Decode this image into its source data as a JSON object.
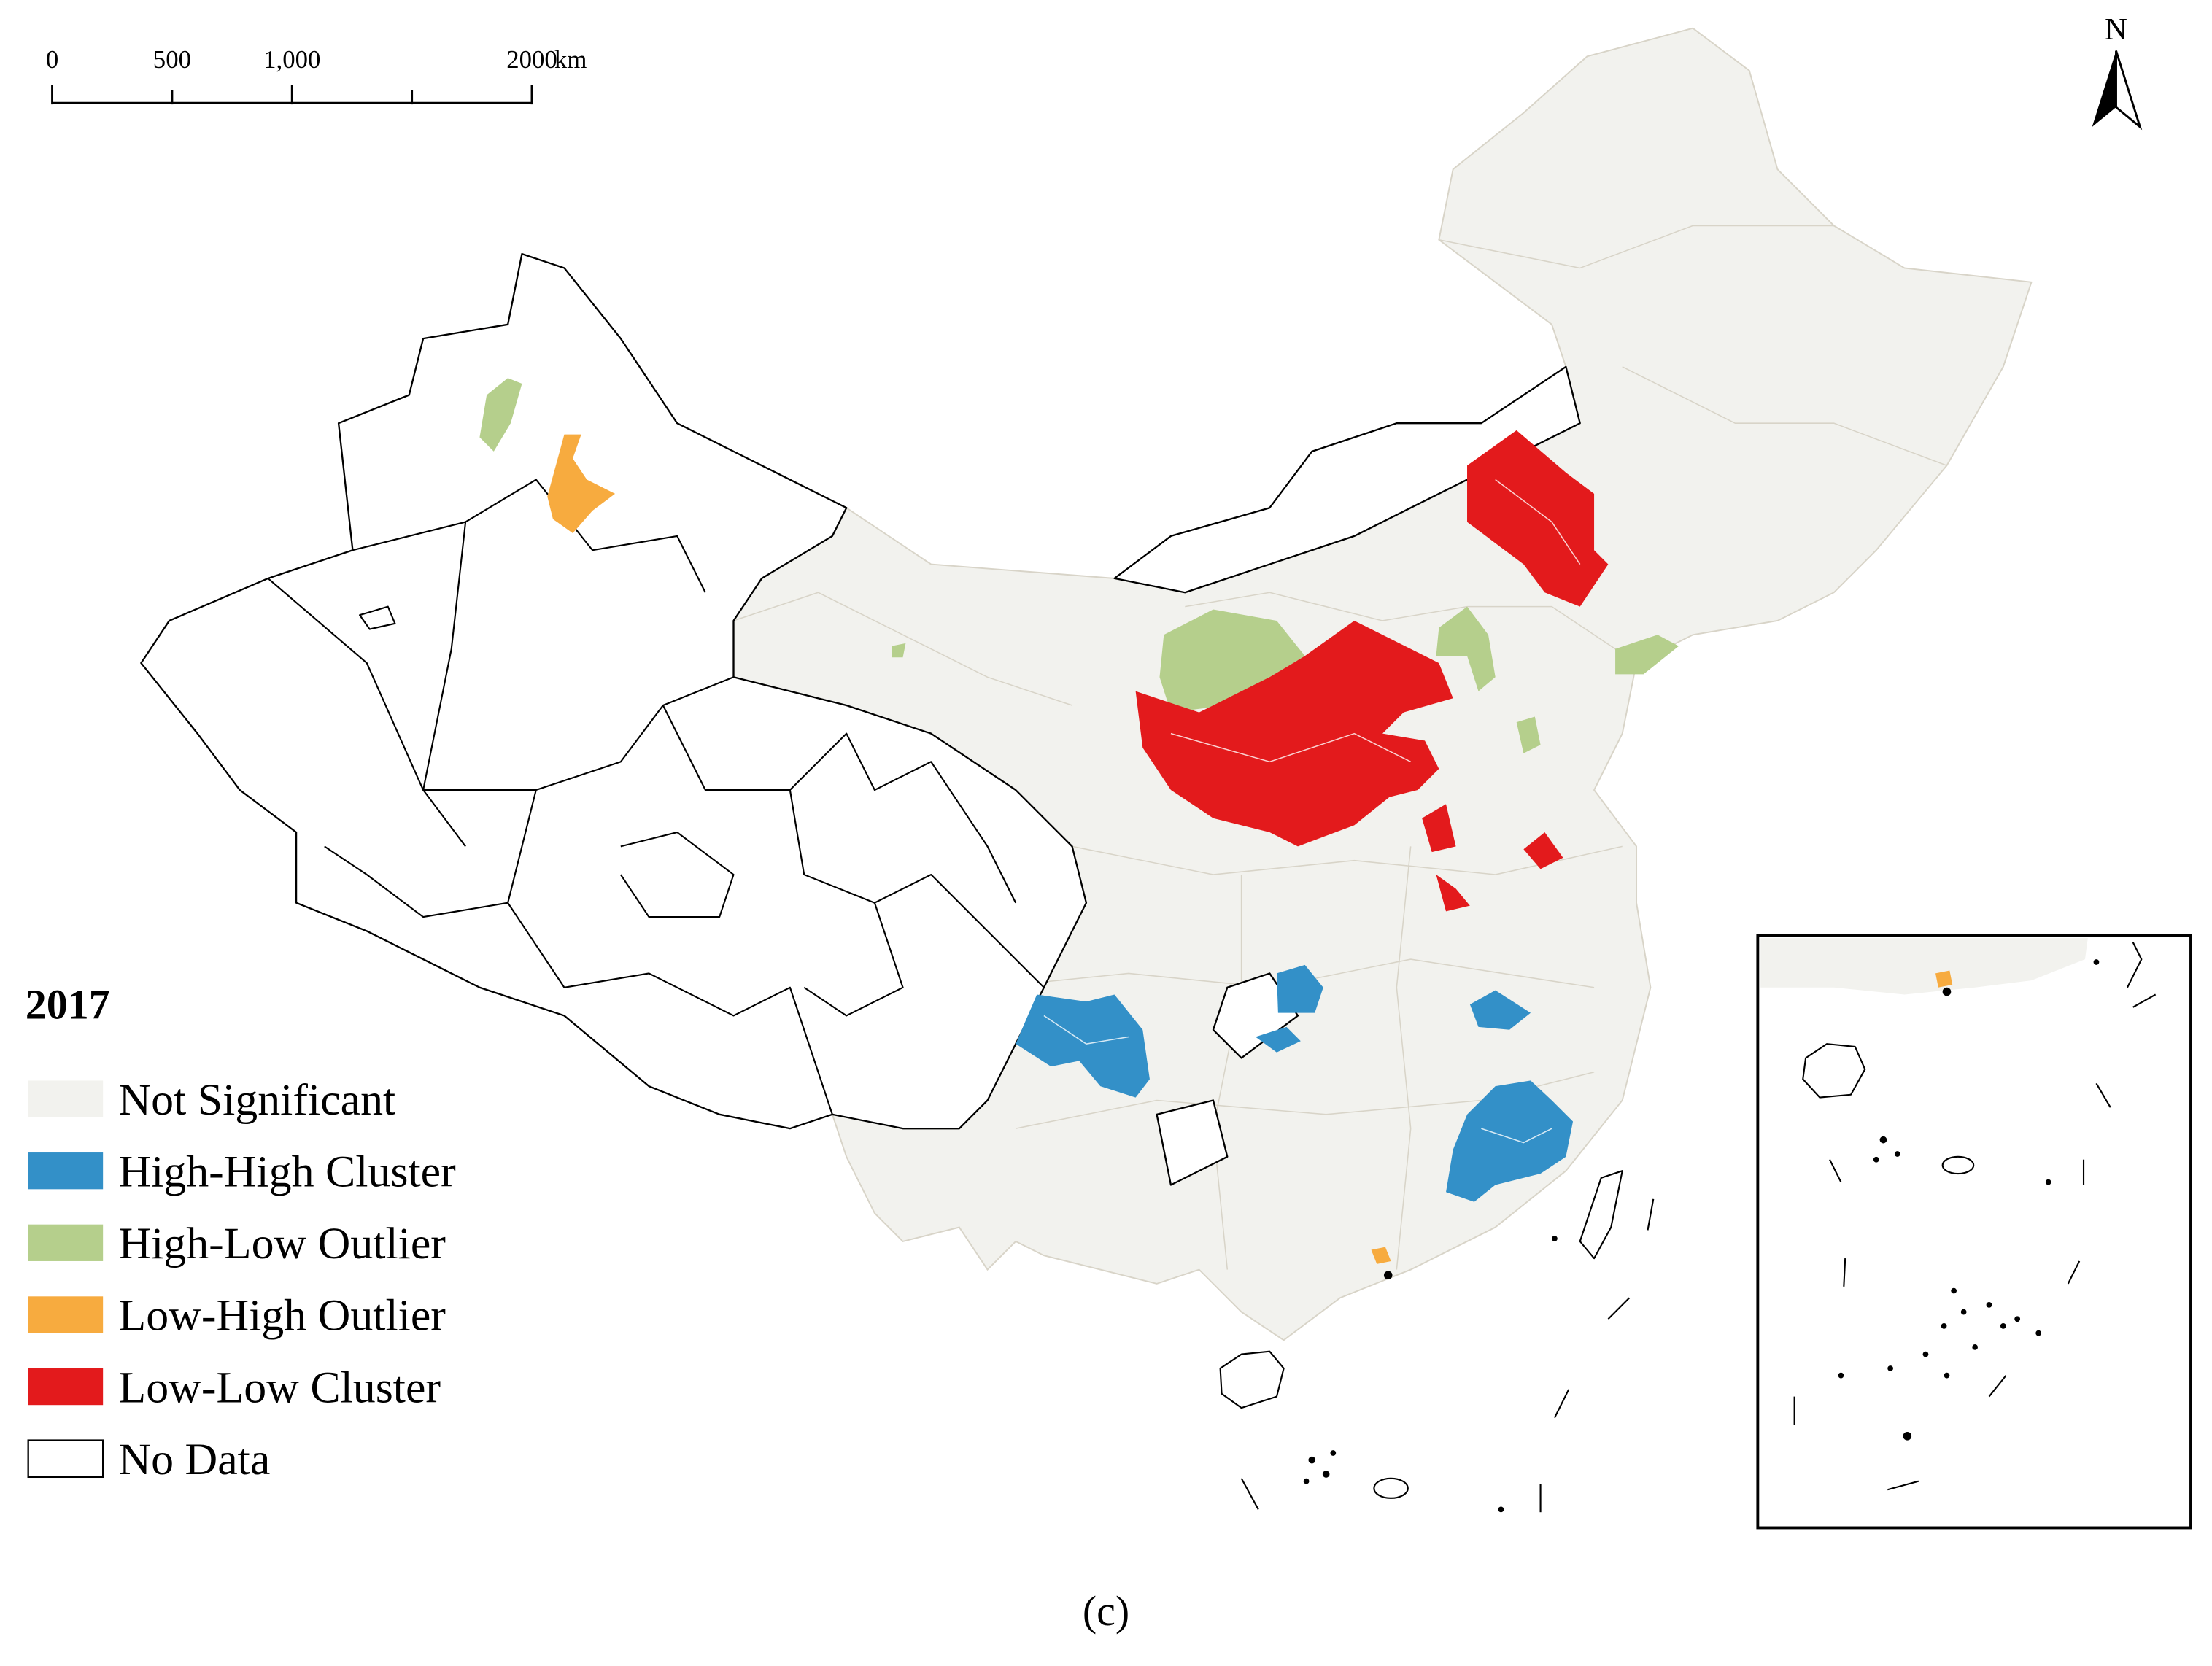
{
  "scale_bar": {
    "labels": [
      "0",
      "500",
      "1,000",
      "2000"
    ],
    "unit": "km"
  },
  "north_arrow": {
    "label": "N"
  },
  "legend": {
    "title": "2017",
    "items": [
      {
        "label": "Not Significant",
        "color": "#f2f2ee"
      },
      {
        "label": "High-High Cluster",
        "color": "#3390c8"
      },
      {
        "label": "High-Low Outlier",
        "color": "#b5cf8c"
      },
      {
        "label": "Low-High Outlier",
        "color": "#f7ab3f"
      },
      {
        "label": "Low-Low Cluster",
        "color": "#e31a1c"
      },
      {
        "label": "No Data",
        "color": "#ffffff"
      }
    ]
  },
  "caption": "(c)"
}
